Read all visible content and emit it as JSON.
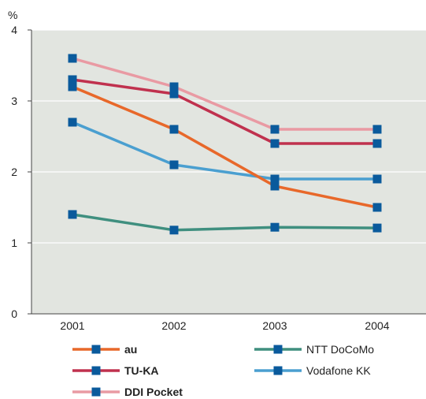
{
  "chart_data": {
    "type": "line",
    "title": "",
    "xlabel": "",
    "ylabel": "%",
    "x": [
      "2001",
      "2002",
      "2003",
      "2004"
    ],
    "ylim": [
      0,
      4
    ],
    "yticks": [
      "0",
      "1",
      "2",
      "3",
      "4"
    ],
    "grid": true,
    "legend_position": "bottom",
    "series": [
      {
        "name": "au",
        "color": "#e8682a",
        "bold": true,
        "values": [
          3.2,
          2.6,
          1.8,
          1.5
        ]
      },
      {
        "name": "NTT DoCoMo",
        "color": "#3f8f7f",
        "bold": false,
        "values": [
          1.4,
          1.18,
          1.22,
          1.21
        ]
      },
      {
        "name": "TU-KA",
        "color": "#c0314e",
        "bold": true,
        "values": [
          3.3,
          3.1,
          2.4,
          2.4
        ]
      },
      {
        "name": "Vodafone KK",
        "color": "#4a9fd0",
        "bold": false,
        "values": [
          2.7,
          2.1,
          1.9,
          1.9
        ]
      },
      {
        "name": "DDI Pocket",
        "color": "#e99aa3",
        "bold": true,
        "values": [
          3.6,
          3.2,
          2.6,
          2.6
        ]
      }
    ],
    "marker_color": "#0a5a9c",
    "plot_background": "#e2e5e0"
  }
}
